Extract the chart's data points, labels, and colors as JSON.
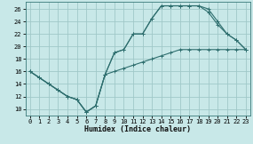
{
  "xlabel": "Humidex (Indice chaleur)",
  "background_color": "#c8e8e8",
  "grid_color": "#a0c8c8",
  "line_color": "#2e6e6e",
  "xlim": [
    -0.5,
    23.5
  ],
  "ylim": [
    9.0,
    27.2
  ],
  "xticks": [
    0,
    1,
    2,
    3,
    4,
    5,
    6,
    7,
    8,
    9,
    10,
    11,
    12,
    13,
    14,
    15,
    16,
    17,
    18,
    19,
    20,
    21,
    22,
    23
  ],
  "yticks": [
    10,
    12,
    14,
    16,
    18,
    20,
    22,
    24,
    26
  ],
  "line1_x": [
    0,
    1,
    2,
    3,
    4,
    5,
    6,
    7,
    8,
    9,
    10,
    11,
    12,
    13,
    14,
    15,
    16,
    17,
    18,
    19,
    20,
    21,
    22,
    23
  ],
  "line1_y": [
    16,
    15,
    14,
    13,
    12,
    11.5,
    9.5,
    10.5,
    15.5,
    19,
    19.5,
    22,
    22,
    24.5,
    26.5,
    26.5,
    26.5,
    26.5,
    26.5,
    26,
    24,
    22,
    21,
    19.5
  ],
  "line2_x": [
    0,
    1,
    2,
    3,
    4,
    5,
    6,
    7,
    8,
    9,
    10,
    11,
    12,
    13,
    14,
    15,
    16,
    17,
    18,
    19,
    20,
    21,
    22,
    23
  ],
  "line2_y": [
    16,
    15,
    14,
    13,
    12,
    11.5,
    9.5,
    10.5,
    15.5,
    16,
    16.5,
    17,
    17.5,
    18,
    18.5,
    19,
    19.5,
    19.5,
    19.5,
    19.5,
    19.5,
    19.5,
    19.5,
    19.5
  ],
  "line3_x": [
    0,
    1,
    2,
    3,
    4,
    5,
    6,
    7,
    8,
    9,
    10,
    11,
    12,
    13,
    14,
    15,
    16,
    17,
    18,
    19,
    20,
    21,
    22,
    23
  ],
  "line3_y": [
    16,
    15,
    14,
    13,
    12,
    11.5,
    9.5,
    10.5,
    15.5,
    19,
    19.5,
    22,
    22,
    24.5,
    26.5,
    26.5,
    26.5,
    26.5,
    26.5,
    25.5,
    23.5,
    22,
    21,
    19.5
  ],
  "xlabel_fontsize": 6,
  "tick_fontsize": 5,
  "linewidth": 0.8,
  "markersize": 2.5
}
